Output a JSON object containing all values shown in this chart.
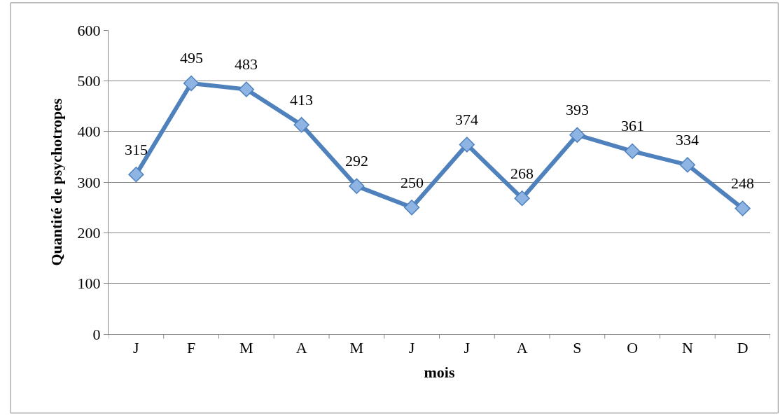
{
  "chart_data": {
    "type": "line",
    "xlabel": "mois",
    "ylabel": "Quantité de psychotropes",
    "categories": [
      "J",
      "F",
      "M",
      "A",
      "M",
      "J",
      "J",
      "A",
      "S",
      "O",
      "N",
      "D"
    ],
    "series": [
      {
        "color": "#4f81bd",
        "values": [
          315,
          495,
          483,
          413,
          292,
          250,
          374,
          268,
          393,
          361,
          334,
          248
        ]
      }
    ],
    "ylim": [
      0,
      600
    ],
    "yticks": [
      0,
      100,
      200,
      300,
      400,
      500,
      600
    ],
    "grid": "y",
    "marker": "diamond",
    "line_style": "solid",
    "data_labels": true
  }
}
